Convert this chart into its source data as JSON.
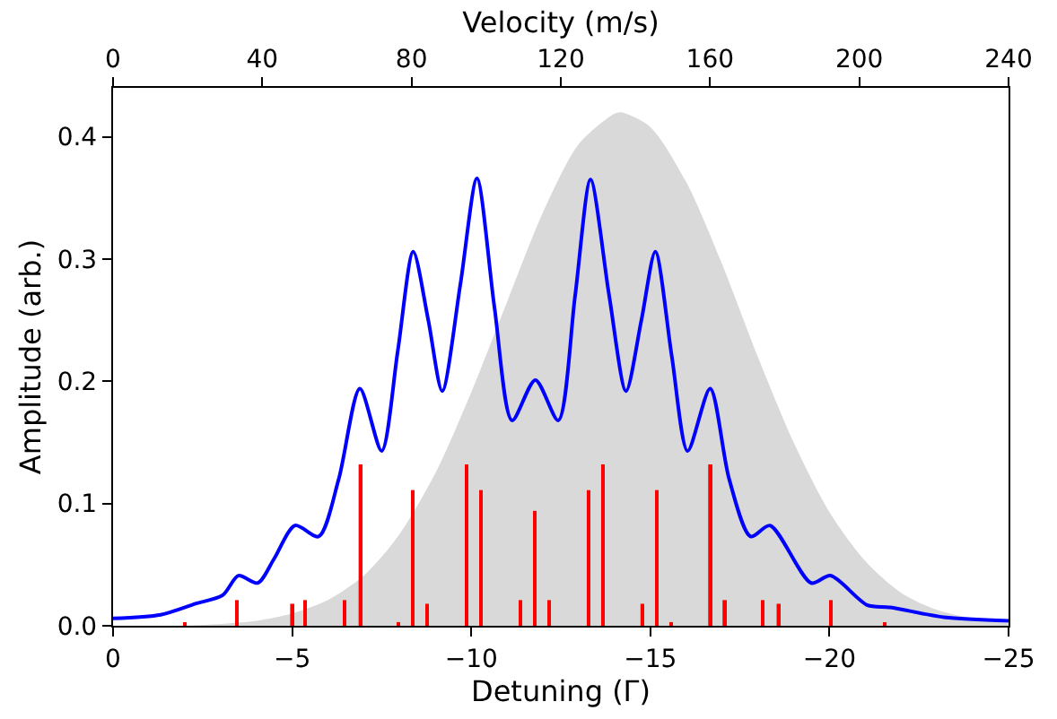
{
  "chart_data": {
    "type": "line",
    "xlabel": "Detuning (Γ)",
    "ylabel": "Amplitude (arb.)",
    "x2label": "Velocity (m/s)",
    "xlim": [
      0,
      -25
    ],
    "xticks": [
      {
        "value": 0,
        "label": "0"
      },
      {
        "value": -5,
        "label": "−5"
      },
      {
        "value": -10,
        "label": "−10"
      },
      {
        "value": -15,
        "label": "−15"
      },
      {
        "value": -20,
        "label": "−20"
      },
      {
        "value": -25,
        "label": "−25"
      }
    ],
    "x2lim": [
      0,
      240
    ],
    "x2ticks": [
      0,
      40,
      80,
      120,
      160,
      200,
      240
    ],
    "ylim": [
      0,
      0.44
    ],
    "yticks": [
      {
        "value": 0,
        "label": "0.0"
      },
      0.1,
      0.2,
      0.3,
      0.4
    ],
    "legend": false,
    "series": [
      {
        "type": "area",
        "color": "#d9d9d9",
        "x": [
          0,
          -2,
          -4,
          -5,
          -6,
          -7,
          -8,
          -9,
          -10,
          -11,
          -12,
          -13,
          -14,
          -14.2,
          -15,
          -16,
          -17,
          -18,
          -19,
          -20,
          -21,
          -22,
          -23,
          -24,
          -25
        ],
        "values": [
          0.0,
          0.0,
          0.004,
          0.01,
          0.021,
          0.041,
          0.075,
          0.125,
          0.191,
          0.265,
          0.338,
          0.394,
          0.419,
          0.42,
          0.408,
          0.363,
          0.296,
          0.22,
          0.15,
          0.093,
          0.053,
          0.027,
          0.013,
          0.006,
          0.002
        ]
      },
      {
        "type": "bar",
        "color": "#ff0000",
        "x": [
          -1.99,
          -3.47,
          -4.98,
          -5.37,
          -6.46,
          -6.89,
          -7.97,
          -8.37,
          -8.76,
          -9.86,
          -10.26,
          -11.38,
          -11.77,
          -12.16,
          -13.26,
          -13.66,
          -14.76,
          -15.17,
          -15.58,
          -16.65,
          -17.05,
          -18.15,
          -18.56,
          -20.05,
          -21.55
        ],
        "values": [
          0.002,
          0.021,
          0.018,
          0.021,
          0.021,
          0.132,
          0.003,
          0.111,
          0.018,
          0.132,
          0.111,
          0.021,
          0.094,
          0.021,
          0.111,
          0.132,
          0.018,
          0.111,
          0.003,
          0.132,
          0.021,
          0.021,
          0.018,
          0.021,
          0.002
        ]
      },
      {
        "color": "#0000ff",
        "x": [
          0,
          -1.33,
          -2.3,
          -3.06,
          -3.5,
          -4.04,
          -4.5,
          -5.08,
          -5.74,
          -6.3,
          -6.89,
          -7.5,
          -7.95,
          -8.38,
          -8.8,
          -9.19,
          -9.7,
          -10.16,
          -10.65,
          -11.14,
          -11.79,
          -12.43,
          -12.9,
          -13.33,
          -13.85,
          -14.32,
          -14.75,
          -15.14,
          -15.6,
          -16.04,
          -16.67,
          -17.2,
          -17.8,
          -18.34,
          -19.49,
          -20.03,
          -21.05,
          -21.7,
          -23.2,
          -25
        ],
        "values": [
          0.006,
          0.009,
          0.018,
          0.025,
          0.041,
          0.035,
          0.055,
          0.082,
          0.073,
          0.12,
          0.194,
          0.143,
          0.225,
          0.306,
          0.25,
          0.192,
          0.28,
          0.366,
          0.26,
          0.168,
          0.201,
          0.168,
          0.27,
          0.365,
          0.27,
          0.192,
          0.25,
          0.306,
          0.22,
          0.143,
          0.194,
          0.12,
          0.073,
          0.082,
          0.035,
          0.041,
          0.017,
          0.015,
          0.007,
          0.004
        ]
      }
    ]
  }
}
